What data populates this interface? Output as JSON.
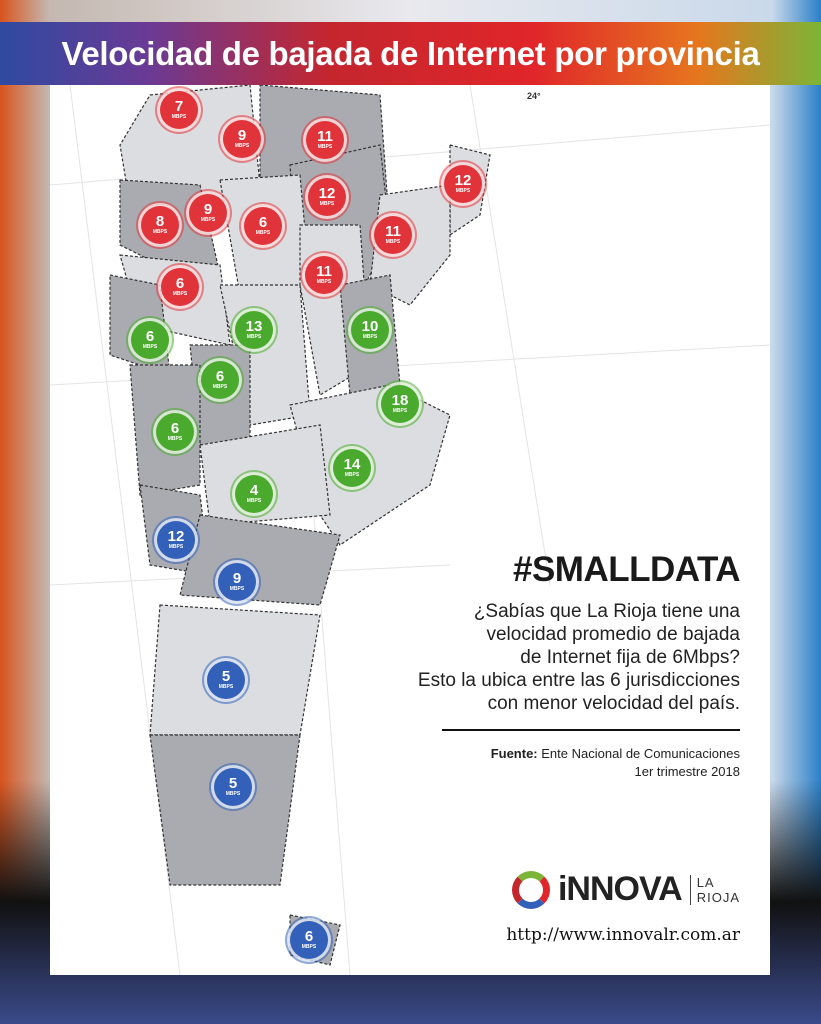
{
  "title": "Velocidad de bajada de Internet por provincia",
  "latitude_label": "24°",
  "unit": "MBPS",
  "colors": {
    "red": "#e0343a",
    "green": "#4aaa2e",
    "blue": "#3360b8"
  },
  "markers": [
    {
      "value": "7",
      "color": "red"
    },
    {
      "value": "9",
      "color": "red"
    },
    {
      "value": "11",
      "color": "red"
    },
    {
      "value": "12",
      "color": "red"
    },
    {
      "value": "12",
      "color": "red"
    },
    {
      "value": "8",
      "color": "red"
    },
    {
      "value": "9",
      "color": "red"
    },
    {
      "value": "6",
      "color": "red"
    },
    {
      "value": "11",
      "color": "red"
    },
    {
      "value": "6",
      "color": "red"
    },
    {
      "value": "11",
      "color": "red"
    },
    {
      "value": "13",
      "color": "green"
    },
    {
      "value": "10",
      "color": "green"
    },
    {
      "value": "6",
      "color": "green"
    },
    {
      "value": "6",
      "color": "green"
    },
    {
      "value": "18",
      "color": "green"
    },
    {
      "value": "6",
      "color": "green"
    },
    {
      "value": "14",
      "color": "green"
    },
    {
      "value": "4",
      "color": "green"
    },
    {
      "value": "12",
      "color": "blue"
    },
    {
      "value": "9",
      "color": "blue"
    },
    {
      "value": "5",
      "color": "blue"
    },
    {
      "value": "5",
      "color": "blue"
    },
    {
      "value": "6",
      "color": "blue"
    }
  ],
  "info": {
    "hashtag": "#SMALLDATA",
    "lines": [
      "¿Sabías que La Rioja tiene una",
      "velocidad promedio de bajada",
      "de Internet fija de 6Mbps?",
      "Esto la ubica entre las 6 jurisdicciones",
      "con menor velocidad del país."
    ],
    "source_label": "Fuente:",
    "source": "Ente Nacional de Comunicaciones",
    "period": "1er trimestre 2018"
  },
  "logo": {
    "brand": "iNNOVA",
    "sub1": "LA",
    "sub2": "RIOJA",
    "url": "http://www.innovalr.com.ar"
  }
}
